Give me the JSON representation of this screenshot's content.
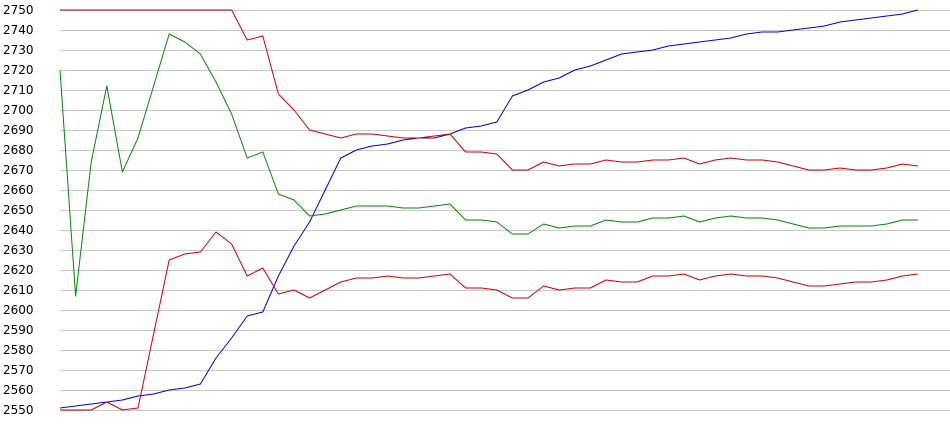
{
  "chart_data": {
    "type": "line",
    "title": "",
    "xlabel": "",
    "ylabel": "",
    "ylim": [
      2550,
      2750
    ],
    "yticks": [
      2550,
      2560,
      2570,
      2580,
      2590,
      2600,
      2610,
      2620,
      2630,
      2640,
      2650,
      2660,
      2670,
      2680,
      2690,
      2700,
      2710,
      2720,
      2730,
      2740,
      2750
    ],
    "xlim": [
      0,
      57
    ],
    "grid": true,
    "legend": "none",
    "series": [
      {
        "color": "#0000cc",
        "values": [
          2551,
          2552,
          2553,
          2554,
          2555,
          2557,
          2558,
          2560,
          2561,
          2563,
          2576,
          2586,
          2597,
          2599,
          2617,
          2632,
          2644,
          2660,
          2676,
          2680,
          2682,
          2683,
          2685,
          2686,
          2686,
          2688,
          2691,
          2692,
          2694,
          2707,
          2710,
          2714,
          2716,
          2720,
          2722,
          2725,
          2728,
          2729,
          2730,
          2732,
          2733,
          2734,
          2735,
          2736,
          2738,
          2739,
          2739,
          2740,
          2741,
          2742,
          2744,
          2745,
          2746,
          2747,
          2748,
          2750
        ]
      },
      {
        "color": "#cc0000",
        "values": [
          2750,
          2750,
          2750,
          2750,
          2750,
          2750,
          2750,
          2750,
          2750,
          2750,
          2750,
          2750,
          2735,
          2737,
          2708,
          2700,
          2690,
          2688,
          2686,
          2688,
          2688,
          2687,
          2686,
          2686,
          2687,
          2688,
          2679,
          2679,
          2678,
          2670,
          2670,
          2674,
          2672,
          2673,
          2673,
          2675,
          2674,
          2674,
          2675,
          2675,
          2676,
          2673,
          2675,
          2676,
          2675,
          2675,
          2674,
          2672,
          2670,
          2670,
          2671,
          2670,
          2670,
          2671,
          2673,
          2672
        ]
      },
      {
        "color": "#008800",
        "values": [
          2720,
          2607,
          2674,
          2712,
          2669,
          2686,
          2712,
          2738,
          2734,
          2728,
          2714,
          2698,
          2676,
          2679,
          2658,
          2655,
          2647,
          2648,
          2650,
          2652,
          2652,
          2652,
          2651,
          2651,
          2652,
          2653,
          2645,
          2645,
          2644,
          2638,
          2638,
          2643,
          2641,
          2642,
          2642,
          2645,
          2644,
          2644,
          2646,
          2646,
          2647,
          2644,
          2646,
          2647,
          2646,
          2646,
          2645,
          2643,
          2641,
          2641,
          2642,
          2642,
          2642,
          2643,
          2645,
          2645
        ]
      },
      {
        "color": "#cc0000",
        "values": [
          2550,
          2550,
          2550,
          2554,
          2550,
          2551,
          2588,
          2625,
          2628,
          2629,
          2639,
          2633,
          2617,
          2621,
          2608,
          2610,
          2606,
          2610,
          2614,
          2616,
          2616,
          2617,
          2616,
          2616,
          2617,
          2618,
          2611,
          2611,
          2610,
          2606,
          2606,
          2612,
          2610,
          2611,
          2611,
          2615,
          2614,
          2614,
          2617,
          2617,
          2618,
          2615,
          2617,
          2618,
          2617,
          2617,
          2616,
          2614,
          2612,
          2612,
          2613,
          2614,
          2614,
          2615,
          2617,
          2618
        ]
      }
    ]
  }
}
